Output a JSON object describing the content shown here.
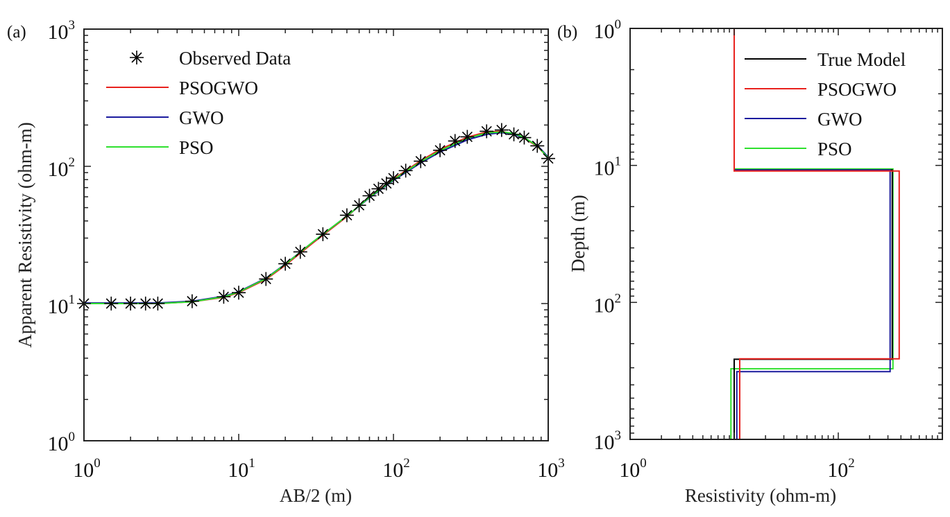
{
  "chart_data": [
    {
      "type": "line",
      "panel_label": "(a)",
      "xscale": "log",
      "yscale": "log",
      "xlabel": "AB/2 (m)",
      "ylabel": "Apparent Resistivity (ohm-m)",
      "xlim": [
        1,
        1000
      ],
      "ylim": [
        1,
        1000
      ],
      "xticks": [
        {
          "base": "10",
          "exp": "0"
        },
        {
          "base": "10",
          "exp": "1"
        },
        {
          "base": "10",
          "exp": "2"
        },
        {
          "base": "10",
          "exp": "3"
        }
      ],
      "yticks": [
        {
          "base": "10",
          "exp": "0"
        },
        {
          "base": "10",
          "exp": "1"
        },
        {
          "base": "10",
          "exp": "2"
        },
        {
          "base": "10",
          "exp": "3"
        }
      ],
      "legend_position": "top-left",
      "grid": false,
      "observed": {
        "name": "Observed Data",
        "marker": "asterisk",
        "color": "#000000",
        "x": [
          1,
          1.5,
          2,
          2.5,
          3,
          5,
          8,
          10,
          15,
          20,
          25,
          35,
          50,
          60,
          70,
          80,
          90,
          100,
          120,
          150,
          200,
          250,
          300,
          400,
          500,
          600,
          700,
          850,
          1000
        ],
        "y": [
          10,
          10,
          10,
          10,
          10,
          10.4,
          11.2,
          12,
          15.1,
          19.5,
          23.8,
          32,
          44,
          52,
          61,
          68.6,
          75,
          82,
          93,
          109,
          131,
          153,
          164,
          180,
          184,
          171,
          162,
          141,
          114
        ]
      },
      "series": [
        {
          "name": "PSOGWO",
          "color": "#e8211d",
          "x": [
            1,
            2,
            3,
            5,
            8,
            10,
            15,
            20,
            30,
            50,
            70,
            100,
            150,
            200,
            300,
            400,
            500,
            600,
            700,
            850,
            1000
          ],
          "y": [
            10,
            10,
            10,
            10.3,
            11.1,
            12,
            15,
            19,
            27.5,
            43,
            60,
            81,
            110,
            133,
            163,
            178,
            180,
            172,
            160,
            140,
            115
          ]
        },
        {
          "name": "GWO",
          "color": "#1a1a9e",
          "x": [
            1,
            2,
            3,
            5,
            8,
            10,
            15,
            20,
            30,
            50,
            70,
            100,
            150,
            200,
            300,
            400,
            500,
            600,
            700,
            850,
            1000
          ],
          "y": [
            10.1,
            10.1,
            10.1,
            10.4,
            11.3,
            12.2,
            15.3,
            19.4,
            28,
            43.5,
            59,
            79,
            106,
            127,
            156,
            171,
            176,
            171,
            161,
            142,
            117
          ]
        },
        {
          "name": "PSO",
          "color": "#2ee02e",
          "x": [
            1,
            2,
            3,
            5,
            8,
            10,
            15,
            20,
            30,
            50,
            70,
            100,
            150,
            200,
            300,
            400,
            500,
            600,
            700,
            850,
            1000
          ],
          "y": [
            10,
            10,
            10,
            10.3,
            11.2,
            12.1,
            15.2,
            19.3,
            28,
            43.5,
            59.5,
            80,
            108,
            130,
            160,
            175,
            178,
            174,
            162,
            141,
            115
          ]
        }
      ]
    },
    {
      "type": "line",
      "panel_label": "(b)",
      "xscale": "log",
      "yscale": "log",
      "y_reversed": true,
      "xlabel": "Resistivity (ohm-m)",
      "ylabel": "Depth (m)",
      "xlim": [
        1,
        1000
      ],
      "ylim": [
        1,
        1000
      ],
      "xticks": [
        {
          "base": "10",
          "exp": "0",
          "value": 1
        },
        {
          "base": "10",
          "exp": "2",
          "value": 100
        }
      ],
      "yticks": [
        {
          "base": "10",
          "exp": "0",
          "value": 1
        },
        {
          "base": "10",
          "exp": "1",
          "value": 10
        },
        {
          "base": "10",
          "exp": "2",
          "value": 100
        },
        {
          "base": "10",
          "exp": "3",
          "value": 1000
        }
      ],
      "legend_position": "top-right",
      "grid": false,
      "series": [
        {
          "name": "True Model",
          "color": "#000000",
          "resistivity": [
            10,
            330,
            10
          ],
          "interface_depths": [
            10.8,
            260
          ]
        },
        {
          "name": "PSOGWO",
          "color": "#e8211d",
          "resistivity": [
            10,
            385,
            11.3
          ],
          "interface_depths": [
            11,
            258
          ]
        },
        {
          "name": "GWO",
          "color": "#1a1a9e",
          "resistivity": [
            10,
            315,
            10.6
          ],
          "interface_depths": [
            10.8,
            320
          ]
        },
        {
          "name": "PSO",
          "color": "#2ee02e",
          "resistivity": [
            10,
            335,
            9.3
          ],
          "interface_depths": [
            10.6,
            305
          ]
        }
      ]
    }
  ]
}
